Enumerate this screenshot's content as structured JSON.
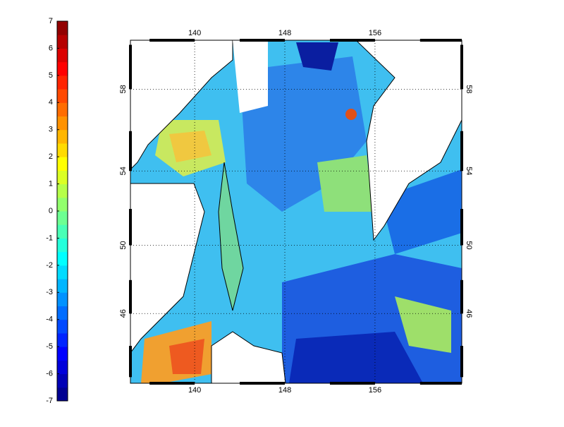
{
  "colorbar": {
    "ticks": [
      -7,
      -6,
      -5,
      -4,
      -3,
      -2,
      -1,
      0,
      1,
      2,
      3,
      4,
      5,
      6,
      7
    ],
    "colormap": "jet",
    "bands": 28
  },
  "map": {
    "lonlim": [
      134.3,
      163.7
    ],
    "latlim": [
      41.6,
      60.2
    ],
    "lonticks": [
      140,
      148,
      156
    ],
    "latticks": [
      58,
      54,
      50,
      46
    ],
    "grid": true
  }
}
